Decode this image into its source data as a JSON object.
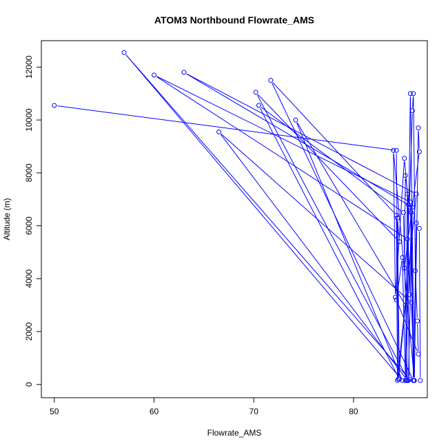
{
  "chart_data": {
    "type": "line",
    "title": "ATOM3 Northbound Flowrate_AMS",
    "xlabel": "Flowrate_AMS",
    "ylabel": "Altitude (m)",
    "xlim": [
      48.7,
      87.4
    ],
    "ylim": [
      -500,
      13000
    ],
    "x_ticks": [
      50,
      60,
      70,
      80
    ],
    "y_ticks": [
      0,
      2000,
      4000,
      6000,
      8000,
      10000,
      12000
    ],
    "grid": false,
    "legend": "none",
    "colors": {
      "series": "#0000ff",
      "axis": "#000000"
    },
    "series": [
      {
        "x": [
          50.0,
          84.3,
          84.5,
          85.2,
          74.2,
          84.9,
          57.0,
          85.6,
          85.4,
          60.0,
          85.7,
          86.0,
          71.7,
          84.3,
          84.4,
          86.3,
          63.0,
          85.9,
          85.5,
          70.2,
          84.6,
          84.4,
          84.6,
          70.5,
          85.0,
          85.4,
          66.5,
          85.8,
          86.1,
          84.0,
          84.2,
          85.1,
          85.5,
          85.3,
          85.7,
          86.1,
          86.5,
          86.6,
          85.1,
          85.2,
          85.6,
          85.9,
          86.0,
          86.2,
          86.4,
          86.5,
          84.3,
          84.9,
          85.2,
          85.4,
          85.6,
          85.8,
          86.0,
          86.3,
          86.6,
          86.7
        ],
        "y": [
          10550,
          8850,
          200,
          3000,
          10000,
          150,
          12550,
          200,
          5500,
          11700,
          6900,
          150,
          11500,
          6400,
          150,
          7200,
          11800,
          6700,
          150,
          11050,
          5400,
          6300,
          200,
          10550,
          6500,
          150,
          9550,
          3100,
          150,
          8850,
          3300,
          8550,
          6800,
          150,
          11000,
          150,
          9700,
          8800,
          4400,
          7900,
          6700,
          10350,
          11000,
          4300,
          2400,
          1150,
          3200,
          4800,
          150,
          7200,
          3400,
          6500,
          150,
          6100,
          5900,
          150
        ]
      }
    ]
  }
}
